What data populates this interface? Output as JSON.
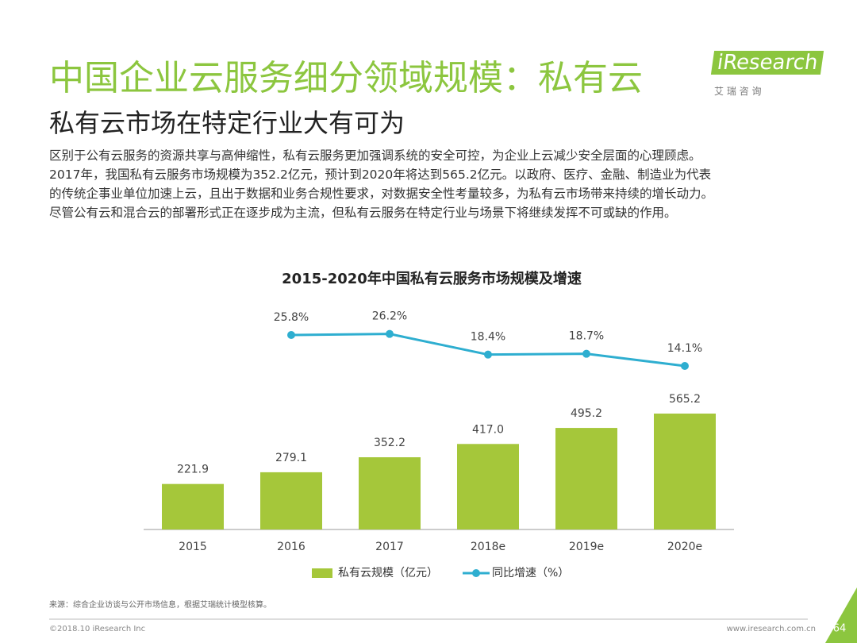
{
  "header": {
    "title": "中国企业云服务细分领域规模：私有云",
    "subtitle": "私有云市场在特定行业大有可为",
    "logo": "iResearch",
    "logo_sub": "艾 瑞 咨 询"
  },
  "body": {
    "lines": [
      "区别于公有云服务的资源共享与高伸缩性，私有云服务更加强调系统的安全可控，为企业上云减少安全层面的心理顾虑。",
      "2017年，我国私有云服务市场规模为352.2亿元，预计到2020年将达到565.2亿元。以政府、医疗、金融、制造业为代表",
      "的传统企事业单位加速上云，且出于数据和业务合规性要求，对数据安全性考量较多，为私有云市场带来持续的增长动力。",
      "尽管公有云和混合云的部署形式正在逐步成为主流，但私有云服务在特定行业与场景下将继续发挥不可或缺的作用。"
    ]
  },
  "chart_data": {
    "type": "bar",
    "title": "2015-2020年中国私有云服务市场规模及增速",
    "categories": [
      "2015",
      "2016",
      "2017",
      "2018e",
      "2019e",
      "2020e"
    ],
    "ylim": [
      0,
      600
    ],
    "y2lim": [
      0,
      30
    ],
    "series": [
      {
        "name": "私有云规模（亿元）",
        "type": "bar",
        "color": "#a5c73a",
        "values": [
          221.9,
          279.1,
          352.2,
          417,
          495.2,
          565.2
        ],
        "value_labels": [
          "221.9",
          "279.1",
          "352.2",
          "417.0",
          "495.2",
          "565.2"
        ]
      },
      {
        "name": "同比增速（%）",
        "type": "line",
        "axis": "y2",
        "color": "#2eaed0",
        "values": [
          null,
          25.8,
          26.2,
          18.4,
          18.7,
          14.1
        ],
        "value_labels": [
          null,
          "25.8%",
          "26.2%",
          "18.4%",
          "18.7%",
          "14.1%"
        ]
      }
    ]
  },
  "footer": {
    "source": "来源：综合企业访谈与公开市场信息，根据艾瑞统计模型核算。",
    "copyright": "©2018.10 iResearch Inc",
    "website": "www.iresearch.com.cn",
    "page": "64"
  }
}
